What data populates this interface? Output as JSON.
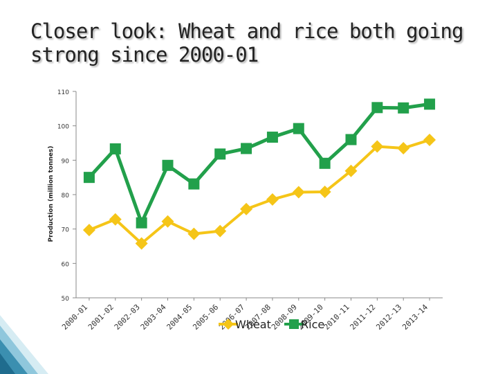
{
  "title": "Closer look: Wheat and rice both going strong since 2000-01",
  "colors": {
    "wheat": "#f5c518",
    "rice": "#22a04b"
  },
  "chart_data": {
    "type": "line",
    "ylabel": "Production (million tonnes)",
    "ylim": [
      50,
      110
    ],
    "yticks": [
      50,
      60,
      70,
      80,
      90,
      100,
      110
    ],
    "categories": [
      "2000-01",
      "2001-02",
      "2002-03",
      "2003-04",
      "2004-05",
      "2005-06",
      "2006-07",
      "2007-08",
      "2008-09",
      "2009-10",
      "2010-11",
      "2011-12",
      "2012-13",
      "2013-14"
    ],
    "series": [
      {
        "name": "Wheat",
        "marker": "diamond",
        "values": [
          69.7,
          72.8,
          65.8,
          72.2,
          68.6,
          69.4,
          75.8,
          78.6,
          80.7,
          80.8,
          86.9,
          94.0,
          93.5,
          95.9
        ]
      },
      {
        "name": "Rice",
        "marker": "square",
        "values": [
          85.0,
          93.3,
          71.8,
          88.5,
          83.1,
          91.8,
          93.4,
          96.7,
          99.2,
          89.1,
          96.0,
          105.3,
          105.2,
          106.3
        ]
      }
    ],
    "legend_position": "bottom"
  }
}
